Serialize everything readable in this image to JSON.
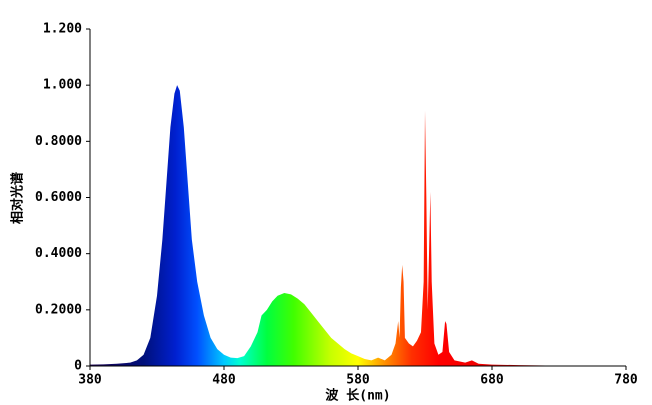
{
  "chart_data": {
    "type": "area",
    "x_label": "波 长(nm)",
    "y_label": "相对光谱",
    "x": [
      380,
      390,
      400,
      410,
      415,
      420,
      425,
      430,
      434,
      437,
      440,
      443,
      445,
      447,
      450,
      453,
      456,
      460,
      465,
      470,
      475,
      480,
      485,
      490,
      495,
      500,
      505,
      508,
      512,
      516,
      520,
      525,
      530,
      535,
      540,
      545,
      550,
      555,
      560,
      565,
      570,
      575,
      580,
      585,
      590,
      595,
      600,
      605,
      608,
      610,
      611,
      612,
      613,
      614,
      615,
      618,
      621,
      624,
      627,
      629,
      630,
      631,
      632,
      633,
      634,
      635,
      637,
      640,
      643,
      645,
      646,
      648,
      652,
      660,
      665,
      670,
      680,
      700,
      720,
      750,
      780
    ],
    "values": [
      0.005,
      0.006,
      0.008,
      0.012,
      0.02,
      0.04,
      0.1,
      0.25,
      0.45,
      0.65,
      0.85,
      0.97,
      1.0,
      0.98,
      0.85,
      0.65,
      0.45,
      0.3,
      0.18,
      0.1,
      0.06,
      0.04,
      0.03,
      0.028,
      0.035,
      0.07,
      0.12,
      0.18,
      0.2,
      0.23,
      0.25,
      0.26,
      0.255,
      0.24,
      0.22,
      0.19,
      0.16,
      0.13,
      0.1,
      0.08,
      0.06,
      0.045,
      0.035,
      0.025,
      0.02,
      0.03,
      0.02,
      0.04,
      0.08,
      0.16,
      0.1,
      0.28,
      0.36,
      0.3,
      0.1,
      0.08,
      0.07,
      0.09,
      0.12,
      0.3,
      0.91,
      0.6,
      0.2,
      0.4,
      0.62,
      0.3,
      0.08,
      0.04,
      0.05,
      0.16,
      0.15,
      0.05,
      0.02,
      0.012,
      0.02,
      0.008,
      0.005,
      0.003,
      0.002,
      0.001,
      0.001
    ],
    "xlim": [
      380,
      780
    ],
    "xticks": [
      380,
      480,
      580,
      680,
      780
    ],
    "ylim": [
      0,
      1.2
    ],
    "yticks": [
      {
        "value": 0,
        "label": "0"
      },
      {
        "value": 0.2,
        "label": "0.2000"
      },
      {
        "value": 0.4,
        "label": "0.4000"
      },
      {
        "value": 0.6,
        "label": "0.6000"
      },
      {
        "value": 0.8,
        "label": "0.8000"
      },
      {
        "value": 1.0,
        "label": "1.000"
      },
      {
        "value": 1.2,
        "label": "1.200"
      }
    ],
    "grid": false
  }
}
